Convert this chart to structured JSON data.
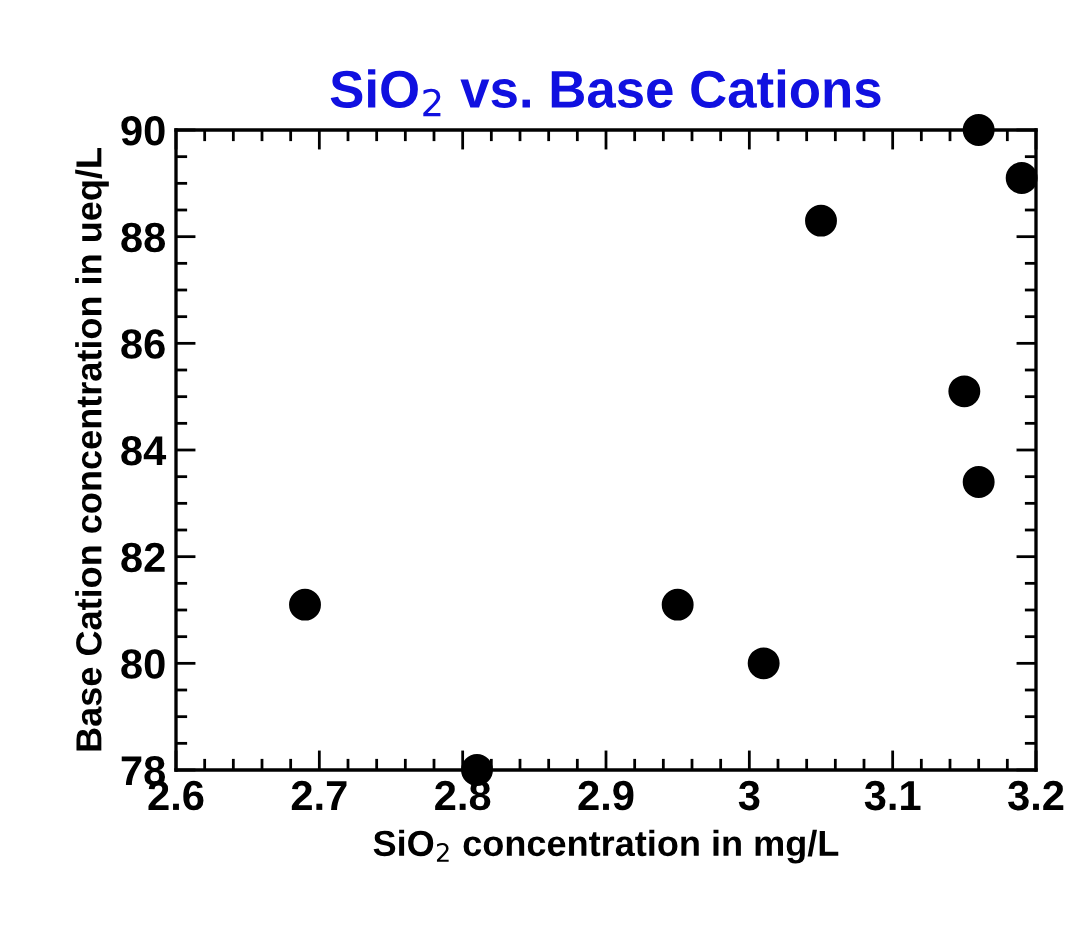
{
  "chart_data": {
    "type": "scatter",
    "title": "SiO$_{2}$ vs. Base Cations",
    "xlabel": "SiO$_{2}$ concentration in mg/L",
    "ylabel": "Base Cation concentration in ueq/L",
    "x": [
      2.69,
      2.81,
      2.95,
      3.01,
      3.05,
      3.15,
      3.16,
      3.16,
      3.19
    ],
    "series": [
      {
        "color": "#000000",
        "values": [
          81.1,
          78.0,
          81.1,
          80.0,
          88.3,
          85.1,
          90.0,
          83.4,
          89.1
        ]
      }
    ],
    "marker": "circle",
    "grid": false,
    "legend": false,
    "xlim": [
      2.6,
      3.2
    ],
    "xticks": [
      2.6,
      2.7,
      2.8,
      2.9,
      {
        "value": 3.0,
        "label": "3"
      },
      3.1,
      3.2
    ],
    "ylim": [
      78,
      90
    ],
    "yticks": [
      78,
      80,
      82,
      84,
      86,
      88,
      90
    ]
  }
}
